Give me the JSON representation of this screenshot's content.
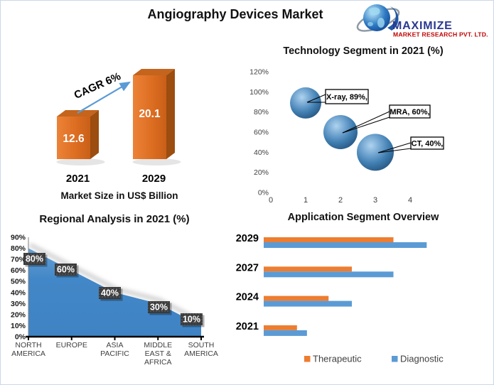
{
  "page": {
    "title": "Angiography Devices Market"
  },
  "logo": {
    "name": "MAXIMIZE",
    "subtitle": "MARKET RESEARCH PVT. LTD."
  },
  "colors": {
    "orange": "#ED7D31",
    "blue": "#5B9BD5",
    "bar_front": "#DF7129",
    "bar_side": "#9C4D10",
    "bar_top": "#C4641D",
    "arrow": "#5B9BD5",
    "bubble": "#4380B5",
    "area_fill": "#3F83C4",
    "label_box": "#3B3B3B",
    "logo_blue": "#2B3990",
    "logo_red": "#C00000"
  },
  "chart_data": [
    {
      "id": "market-size",
      "type": "bar",
      "caption": "Market Size in US$ Billion",
      "annotation": "CAGR 6%",
      "categories": [
        "2021",
        "2029"
      ],
      "values": [
        12.6,
        20.1
      ]
    },
    {
      "id": "technology-segment",
      "type": "scatter",
      "title": "Technology Segment in 2021 (%)",
      "points": [
        {
          "label": "X-ray, 89%,",
          "x": 1,
          "y": 89
        },
        {
          "label": "MRA, 60%,",
          "x": 2,
          "y": 60
        },
        {
          "label": "CT, 40%,",
          "x": 3,
          "y": 40
        }
      ],
      "x_ticks": [
        "0",
        "1",
        "2",
        "3",
        "4"
      ],
      "y_ticks": [
        "0%",
        "20%",
        "40%",
        "60%",
        "80%",
        "100%",
        "120%"
      ],
      "xlim": [
        0,
        4.5
      ],
      "ylim": [
        0,
        120
      ]
    },
    {
      "id": "regional-analysis",
      "type": "area",
      "title": "Regional Analysis in 2021 (%)",
      "categories": [
        "NORTH AMERICA",
        "EUROPE",
        "ASIA PACIFIC",
        "MIDDLE EAST & AFRICA",
        "SOUTH AMERICA"
      ],
      "categories_lines": [
        [
          "NORTH",
          "AMERICA"
        ],
        [
          "EUROPE"
        ],
        [
          "ASIA",
          "PACIFIC"
        ],
        [
          "MIDDLE",
          "EAST &",
          "AFRICA"
        ],
        [
          "SOUTH",
          "AMERICA"
        ]
      ],
      "values": [
        80,
        60,
        40,
        30,
        10
      ],
      "labels": [
        "80%",
        "60%",
        "40%",
        "30%",
        "10%"
      ],
      "y_ticks": [
        "0%",
        "10%",
        "20%",
        "30%",
        "40%",
        "50%",
        "60%",
        "70%",
        "80%",
        "90%"
      ],
      "ylim": [
        0,
        90
      ]
    },
    {
      "id": "application-segment",
      "type": "bar",
      "orientation": "horizontal",
      "title": "Application Segment Overview",
      "categories": [
        "2029",
        "2027",
        "2024",
        "2021"
      ],
      "series": [
        {
          "name": "Therapeutic",
          "color": "#ED7D31",
          "values": [
            7.8,
            5.3,
            3.9,
            2.0
          ]
        },
        {
          "name": "Diagnostic",
          "color": "#5B9BD5",
          "values": [
            9.8,
            7.8,
            5.3,
            2.6
          ]
        }
      ]
    }
  ]
}
